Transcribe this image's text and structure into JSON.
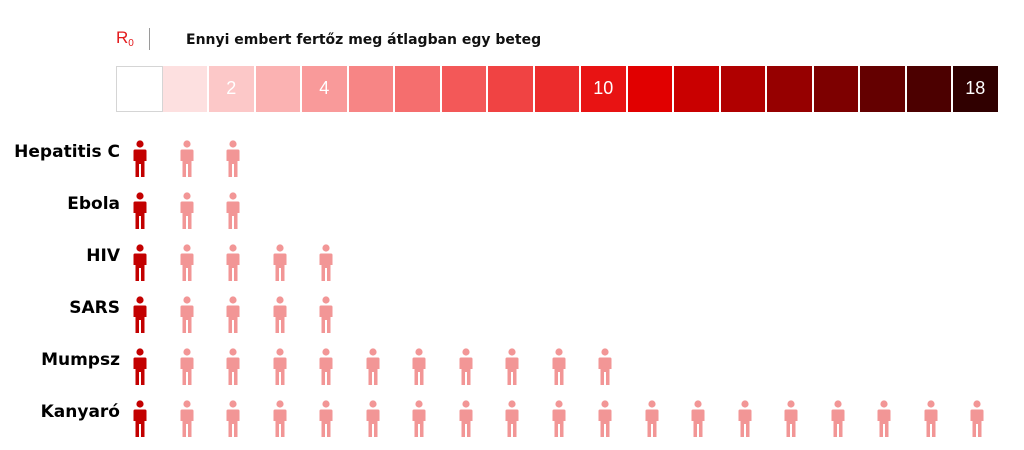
{
  "header": {
    "r0_symbol": "R",
    "r0_subscript": "0",
    "title": "Ennyi embert fertőz meg átlagban egy beteg"
  },
  "colors": {
    "source_person": "#c30000",
    "infected_person": "#f29696",
    "scale": [
      "#ffffff",
      "#fde0e0",
      "#fcc8c8",
      "#fbb2b2",
      "#f99a9a",
      "#f78585",
      "#f56e6e",
      "#f35858",
      "#f04343",
      "#ec2c2c",
      "#e81313",
      "#e10000",
      "#c90000",
      "#b00000",
      "#960000",
      "#7d0000",
      "#640000",
      "#4c0000",
      "#300000"
    ]
  },
  "chart_data": {
    "type": "pictogram",
    "title": "Ennyi embert fertőz meg átlagban egy beteg",
    "scale": {
      "min": 0,
      "max": 18,
      "labeled_ticks": [
        {
          "value": 2,
          "label": "2"
        },
        {
          "value": 4,
          "label": "4"
        },
        {
          "value": 10,
          "label": "10"
        },
        {
          "value": 18,
          "label": "18"
        }
      ]
    },
    "categories": [
      "Hepatitis C",
      "Ebola",
      "HIV",
      "SARS",
      "Mumpsz",
      "Kanyaró"
    ],
    "values": [
      2,
      2,
      4,
      4,
      10,
      18
    ]
  }
}
